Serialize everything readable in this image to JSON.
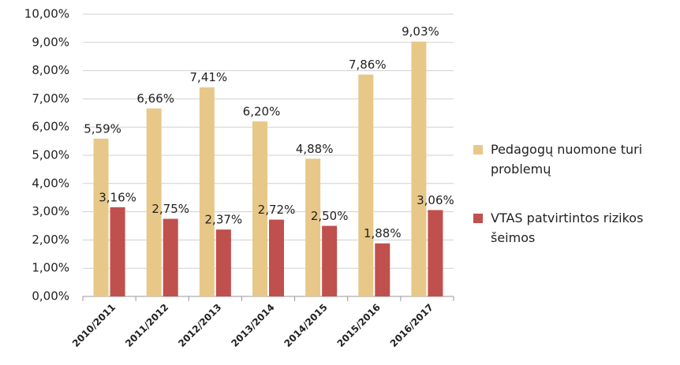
{
  "chart_data": {
    "type": "bar",
    "categories": [
      "2010/2011",
      "2011/2012",
      "2012/2013",
      "2013/2014",
      "2014/2015",
      "2015/2016",
      "2016/2017"
    ],
    "series": [
      {
        "name": "Pedagogų nuomone turi problemų",
        "color": "#e8c888",
        "values": [
          5.59,
          6.66,
          7.41,
          6.2,
          4.88,
          7.86,
          9.03
        ],
        "value_labels": [
          "5,59%",
          "6,66%",
          "7,41%",
          "6,20%",
          "4,88%",
          "7,86%",
          "9,03%"
        ]
      },
      {
        "name": "VTAS patvirtintos rizikos šeimos",
        "color": "#c0504d",
        "values": [
          3.16,
          2.75,
          2.37,
          2.72,
          2.5,
          1.88,
          3.06
        ],
        "value_labels": [
          "3,16%",
          "2,75%",
          "2,37%",
          "2,72%",
          "2,50%",
          "1,88%",
          "3,06%"
        ]
      }
    ],
    "ylim": [
      0,
      10
    ],
    "yticks": [
      {
        "value": 0,
        "label": "0,00%"
      },
      {
        "value": 1,
        "label": "1,00%"
      },
      {
        "value": 2,
        "label": "2,00%"
      },
      {
        "value": 3,
        "label": "3,00%"
      },
      {
        "value": 4,
        "label": "4,00%"
      },
      {
        "value": 5,
        "label": "5,00%"
      },
      {
        "value": 6,
        "label": "6,00%"
      },
      {
        "value": 7,
        "label": "7,00%"
      },
      {
        "value": 8,
        "label": "8,00%"
      },
      {
        "value": 9,
        "label": "9,00%"
      },
      {
        "value": 10,
        "label": "10,00%"
      }
    ],
    "grid": true,
    "legend": "right"
  }
}
